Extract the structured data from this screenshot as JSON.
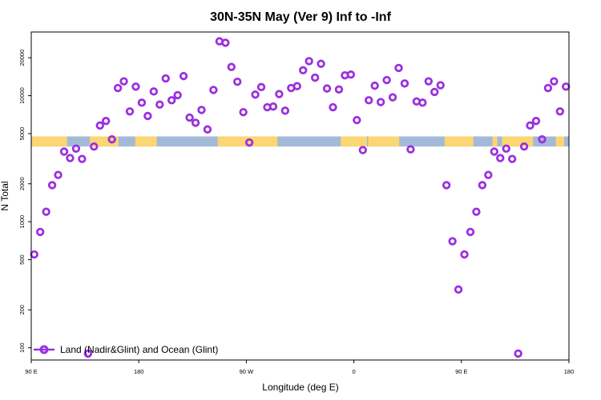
{
  "chart_data": {
    "type": "scatter",
    "title": "30N-35N May (Ver 9)   Inf to -Inf",
    "xlabel": "Longitude (deg E)",
    "ylabel": "N Total",
    "y_scale": "log",
    "xlim": [
      90,
      540
    ],
    "ylim": [
      80,
      32000
    ],
    "x_ticks": [
      {
        "value": 90,
        "label": "90 E"
      },
      {
        "value": 180,
        "label": "180"
      },
      {
        "value": 270,
        "label": "90 W"
      },
      {
        "value": 360,
        "label": "0"
      },
      {
        "value": 450,
        "label": "90 E"
      },
      {
        "value": 540,
        "label": "180"
      }
    ],
    "y_ticks": [
      {
        "value": 100,
        "label": "100"
      },
      {
        "value": 200,
        "label": "200"
      },
      {
        "value": 500,
        "label": "500"
      },
      {
        "value": 1000,
        "label": "1000"
      },
      {
        "value": 2000,
        "label": "2000"
      },
      {
        "value": 5000,
        "label": "5000"
      },
      {
        "value": 10000,
        "label": "10000"
      },
      {
        "value": 20000,
        "label": "20000"
      }
    ],
    "series": [
      {
        "name": "Land (Nadir&Glint) and Ocean (Glint)",
        "color": "#9b30e0",
        "marker": "open-circle",
        "points": [
          [
            92.5,
            550
          ],
          [
            97.5,
            830
          ],
          [
            102.5,
            1200
          ],
          [
            107.5,
            1950
          ],
          [
            112.5,
            2350
          ],
          [
            117.5,
            3600
          ],
          [
            122.5,
            3200
          ],
          [
            127.5,
            3800
          ],
          [
            132.5,
            3150
          ],
          [
            137.5,
            90
          ],
          [
            142.5,
            3950
          ],
          [
            147.5,
            5800
          ],
          [
            152.5,
            6300
          ],
          [
            157.5,
            4500
          ],
          [
            162.5,
            11500
          ],
          [
            167.5,
            13000
          ],
          [
            172.5,
            7500
          ],
          [
            177.5,
            11800
          ],
          [
            182.5,
            8800
          ],
          [
            187.5,
            6900
          ],
          [
            192.5,
            10800
          ],
          [
            197.5,
            8500
          ],
          [
            202.5,
            13700
          ],
          [
            207.5,
            9200
          ],
          [
            212.5,
            10100
          ],
          [
            217.5,
            14300
          ],
          [
            222.5,
            6700
          ],
          [
            227.5,
            6100
          ],
          [
            232.5,
            7700
          ],
          [
            237.5,
            5400
          ],
          [
            242.5,
            11100
          ],
          [
            247.5,
            27000
          ],
          [
            252.5,
            26300
          ],
          [
            257.5,
            16900
          ],
          [
            262.5,
            12900
          ],
          [
            267.5,
            7400
          ],
          [
            272.5,
            4250
          ],
          [
            277.5,
            10200
          ],
          [
            282.5,
            11700
          ],
          [
            287.5,
            8100
          ],
          [
            292.5,
            8200
          ],
          [
            297.5,
            10300
          ],
          [
            302.5,
            7600
          ],
          [
            307.5,
            11500
          ],
          [
            312.5,
            11900
          ],
          [
            317.5,
            15900
          ],
          [
            322.5,
            18800
          ],
          [
            327.5,
            13900
          ],
          [
            332.5,
            17900
          ],
          [
            337.5,
            11400
          ],
          [
            342.5,
            8100
          ],
          [
            347.5,
            11200
          ],
          [
            352.5,
            14500
          ],
          [
            357.5,
            14700
          ],
          [
            362.5,
            6400
          ],
          [
            367.5,
            3700
          ],
          [
            372.5,
            9200
          ],
          [
            377.5,
            12000
          ],
          [
            382.5,
            8900
          ],
          [
            387.5,
            13300
          ],
          [
            392.5,
            9700
          ],
          [
            397.5,
            16600
          ],
          [
            402.5,
            12500
          ],
          [
            407.5,
            3750
          ],
          [
            412.5,
            9000
          ],
          [
            417.5,
            8800
          ],
          [
            422.5,
            13000
          ],
          [
            427.5,
            10700
          ],
          [
            432.5,
            12100
          ],
          [
            437.5,
            1950
          ],
          [
            442.5,
            700
          ],
          [
            447.5,
            290
          ],
          [
            452.5,
            550
          ],
          [
            457.5,
            830
          ],
          [
            462.5,
            1200
          ],
          [
            467.5,
            1950
          ],
          [
            472.5,
            2350
          ],
          [
            477.5,
            3600
          ],
          [
            482.5,
            3200
          ],
          [
            487.5,
            3800
          ],
          [
            492.5,
            3150
          ],
          [
            497.5,
            90
          ],
          [
            502.5,
            3950
          ],
          [
            507.5,
            5800
          ],
          [
            512.5,
            6300
          ],
          [
            517.5,
            4500
          ],
          [
            522.5,
            11500
          ],
          [
            527.5,
            13000
          ],
          [
            532.5,
            7500
          ],
          [
            537.5,
            11800
          ]
        ]
      }
    ],
    "surface_strip": {
      "value_low": 3950,
      "value_high": 4750,
      "land_color": "#fcd672",
      "ocean_color": "#a3b9d8",
      "land_ranges": [
        [
          90,
          120
        ],
        [
          139,
          163
        ],
        [
          177,
          195
        ],
        [
          246,
          278
        ],
        [
          277,
          296
        ],
        [
          349,
          371
        ],
        [
          372,
          398
        ],
        [
          436,
          460
        ],
        [
          476,
          480
        ],
        [
          484,
          510
        ],
        [
          529,
          536
        ]
      ]
    },
    "legend": {
      "position": "bottom-left",
      "label": "Land (Nadir&Glint) and Ocean (Glint)"
    }
  }
}
